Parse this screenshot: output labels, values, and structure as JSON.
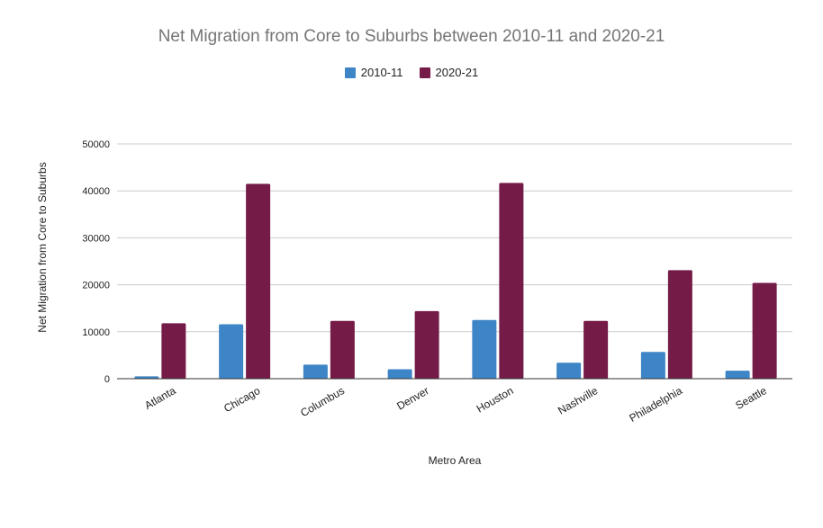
{
  "chart_data": {
    "type": "bar",
    "title": "Net Migration from Core to Suburbs between 2010-11 and 2020-21",
    "xlabel": "Metro Area",
    "ylabel": "Net Migration from Core to Suburbs",
    "categories": [
      "Atlanta",
      "Chicago",
      "Columbus",
      "Denver",
      "Houston",
      "Nashville",
      "Philadelphia",
      "Seattle"
    ],
    "series": [
      {
        "name": "2010-11",
        "color": "#3d85c6",
        "values": [
          500,
          11600,
          3000,
          2000,
          12500,
          3400,
          5700,
          1700
        ]
      },
      {
        "name": "2020-21",
        "color": "#741b47",
        "values": [
          11800,
          41500,
          12300,
          14400,
          41700,
          12300,
          23100,
          20400
        ]
      }
    ],
    "ylim": [
      0,
      50000
    ],
    "yticks": [
      0,
      10000,
      20000,
      30000,
      40000,
      50000
    ],
    "grid": true,
    "legend_position": "top-center"
  }
}
